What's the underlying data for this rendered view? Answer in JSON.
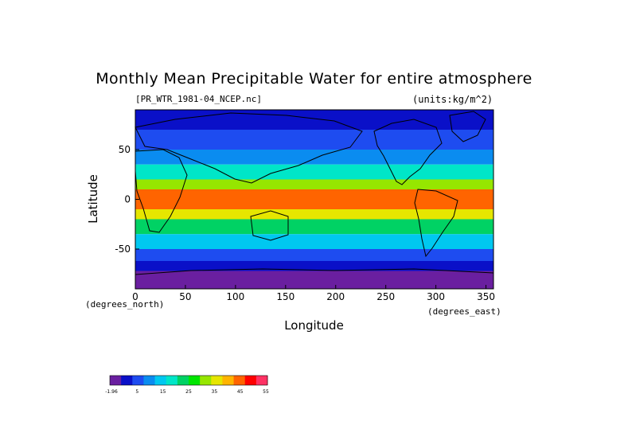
{
  "chart_data": {
    "type": "heatmap",
    "title": "Monthly Mean Precipitable Water for entire atmosphere",
    "file_label": "[PR_WTR_1981-04_NCEP.nc]",
    "units_label": "(units:kg/m^2)",
    "xlabel": "Longitude",
    "ylabel": "Latitude",
    "x_unit_label": "(degrees_east)",
    "y_unit_label": "(degrees_north)",
    "xlim": [
      0,
      357.5
    ],
    "ylim": [
      -90,
      90
    ],
    "x_ticks": [
      0,
      50,
      100,
      150,
      200,
      250,
      300,
      350
    ],
    "y_ticks": [
      -50,
      0,
      50
    ],
    "colorbar": {
      "levels": [
        "-1.96",
        "5",
        "15",
        "25",
        "35",
        "45",
        "55"
      ],
      "colors": [
        "#6a1fa0",
        "#0a10c8",
        "#1e4cf0",
        "#0a8cf0",
        "#00c8f0",
        "#00e6c8",
        "#00d264",
        "#00e600",
        "#96e600",
        "#e6e600",
        "#ffb400",
        "#ff6400",
        "#ff0000",
        "#ff3264"
      ]
    },
    "lat_bands": [
      {
        "lat": [
          70,
          90
        ],
        "value": 5
      },
      {
        "lat": [
          50,
          70
        ],
        "value": 9
      },
      {
        "lat": [
          35,
          50
        ],
        "value": 14
      },
      {
        "lat": [
          20,
          35
        ],
        "value": 22
      },
      {
        "lat": [
          10,
          20
        ],
        "value": 32
      },
      {
        "lat": [
          -10,
          10
        ],
        "value": 44
      },
      {
        "lat": [
          -20,
          -10
        ],
        "value": 36
      },
      {
        "lat": [
          -35,
          -20
        ],
        "value": 24
      },
      {
        "lat": [
          -50,
          -35
        ],
        "value": 15
      },
      {
        "lat": [
          -62,
          -50
        ],
        "value": 9
      },
      {
        "lat": [
          -72,
          -62
        ],
        "value": 4
      },
      {
        "lat": [
          -90,
          -72
        ],
        "value": 1
      }
    ]
  }
}
